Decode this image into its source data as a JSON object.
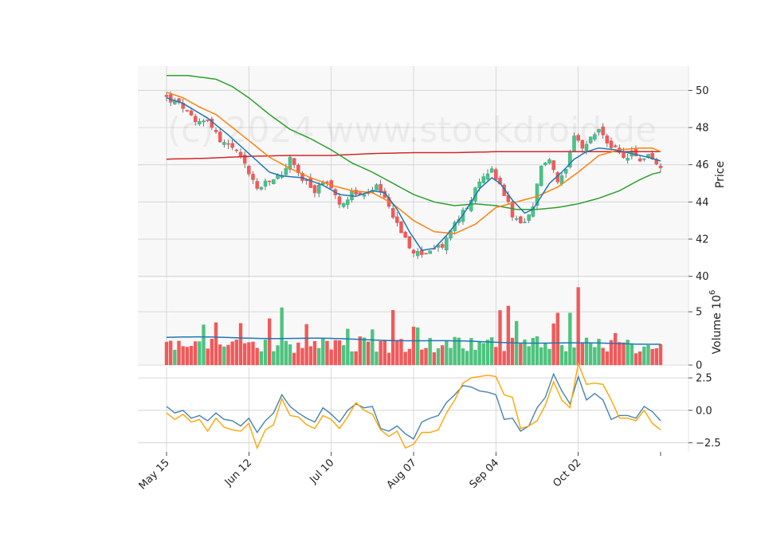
{
  "chart_data": {
    "type": "candlestick",
    "watermark": "(c) 2024 www.stockdroid.de",
    "colors": {
      "up": "#26a69a",
      "up_fill": "#4ec37f",
      "down": "#ef5350",
      "down_fill": "#f05a5a",
      "ma_short": "#1f77b4",
      "ma_mid": "#ff7f0e",
      "ma_long": "#2ca02c",
      "ma_200": "#d62728",
      "vol_ma": "#1f77b4",
      "osc_1": "#4682b4",
      "osc_2": "#ffa500",
      "panel_bg": "#f8f8f8",
      "grid": "#d0d0d0"
    },
    "x_tick_labels": [
      "May 15",
      "Jun 12",
      "Jul 10",
      "Aug 07",
      "Sep 04",
      "Oct 02"
    ],
    "x_tick_index": [
      0,
      20,
      40,
      60,
      80,
      100
    ],
    "n_bars": 121,
    "price_panel": {
      "ylabel": "Price",
      "ylim": [
        39.9,
        51.3
      ],
      "yticks": [
        40,
        42,
        44,
        46,
        48,
        50
      ],
      "anchors": [
        [
          0,
          49.6
        ],
        [
          4,
          49.1
        ],
        [
          7,
          48.2
        ],
        [
          10,
          48.5
        ],
        [
          13,
          47.3
        ],
        [
          16,
          46.9
        ],
        [
          19,
          46.0
        ],
        [
          22,
          44.7
        ],
        [
          25,
          45.1
        ],
        [
          28,
          45.5
        ],
        [
          30,
          46.3
        ],
        [
          33,
          45.2
        ],
        [
          36,
          44.6
        ],
        [
          39,
          45.2
        ],
        [
          42,
          43.8
        ],
        [
          45,
          44.5
        ],
        [
          48,
          44.3
        ],
        [
          51,
          44.8
        ],
        [
          54,
          43.7
        ],
        [
          56,
          42.9
        ],
        [
          59,
          41.5
        ],
        [
          61,
          41.2
        ],
        [
          64,
          41.4
        ],
        [
          67,
          41.6
        ],
        [
          69,
          42.5
        ],
        [
          72,
          43.4
        ],
        [
          74,
          44.2
        ],
        [
          76,
          45.0
        ],
        [
          79,
          45.8
        ],
        [
          82,
          44.5
        ],
        [
          84,
          43.2
        ],
        [
          87,
          42.8
        ],
        [
          89,
          43.7
        ],
        [
          91,
          46.0
        ],
        [
          93,
          46.3
        ],
        [
          95,
          45.0
        ],
        [
          97,
          45.6
        ],
        [
          99,
          47.5
        ],
        [
          101,
          46.8
        ],
        [
          103,
          47.4
        ],
        [
          105,
          47.9
        ],
        [
          107,
          47.2
        ],
        [
          109,
          46.8
        ],
        [
          111,
          46.3
        ],
        [
          113,
          46.6
        ],
        [
          115,
          46.2
        ],
        [
          117,
          46.6
        ],
        [
          120,
          45.7
        ]
      ],
      "ma_short": [
        [
          0,
          49.6
        ],
        [
          4,
          49.3
        ],
        [
          10,
          48.5
        ],
        [
          15,
          47.6
        ],
        [
          20,
          46.6
        ],
        [
          25,
          45.6
        ],
        [
          28,
          45.4
        ],
        [
          33,
          45.3
        ],
        [
          38,
          44.9
        ],
        [
          42,
          44.4
        ],
        [
          46,
          44.3
        ],
        [
          50,
          44.6
        ],
        [
          53,
          44.5
        ],
        [
          56,
          43.6
        ],
        [
          59,
          42.4
        ],
        [
          62,
          41.4
        ],
        [
          65,
          41.5
        ],
        [
          68,
          42.2
        ],
        [
          72,
          43.3
        ],
        [
          76,
          44.7
        ],
        [
          79,
          45.3
        ],
        [
          81,
          45.0
        ],
        [
          84,
          44.1
        ],
        [
          87,
          43.4
        ],
        [
          89,
          43.6
        ],
        [
          91,
          44.3
        ],
        [
          93,
          45.0
        ],
        [
          96,
          45.6
        ],
        [
          99,
          46.3
        ],
        [
          102,
          46.7
        ],
        [
          105,
          46.9
        ],
        [
          109,
          46.8
        ],
        [
          113,
          46.6
        ],
        [
          117,
          46.4
        ],
        [
          120,
          46.2
        ]
      ],
      "ma_mid": [
        [
          0,
          49.9
        ],
        [
          4,
          49.6
        ],
        [
          8,
          49.1
        ],
        [
          12,
          48.7
        ],
        [
          16,
          48.0
        ],
        [
          20,
          47.3
        ],
        [
          25,
          46.4
        ],
        [
          30,
          45.8
        ],
        [
          35,
          45.3
        ],
        [
          40,
          44.9
        ],
        [
          45,
          44.6
        ],
        [
          50,
          44.5
        ],
        [
          55,
          43.9
        ],
        [
          60,
          43.0
        ],
        [
          65,
          42.4
        ],
        [
          70,
          42.3
        ],
        [
          75,
          42.8
        ],
        [
          80,
          43.7
        ],
        [
          85,
          44.0
        ],
        [
          90,
          44.3
        ],
        [
          95,
          44.8
        ],
        [
          100,
          45.6
        ],
        [
          105,
          46.5
        ],
        [
          110,
          46.8
        ],
        [
          115,
          46.9
        ],
        [
          118,
          46.9
        ],
        [
          120,
          46.7
        ]
      ],
      "ma_long": [
        [
          0,
          50.8
        ],
        [
          5,
          50.8
        ],
        [
          12,
          50.6
        ],
        [
          16,
          50.2
        ],
        [
          20,
          49.6
        ],
        [
          25,
          48.7
        ],
        [
          30,
          47.9
        ],
        [
          35,
          47.4
        ],
        [
          40,
          46.8
        ],
        [
          45,
          46.1
        ],
        [
          50,
          45.6
        ],
        [
          55,
          45.0
        ],
        [
          60,
          44.4
        ],
        [
          65,
          44.0
        ],
        [
          70,
          43.8
        ],
        [
          75,
          43.9
        ],
        [
          80,
          43.8
        ],
        [
          85,
          43.6
        ],
        [
          90,
          43.6
        ],
        [
          95,
          43.7
        ],
        [
          100,
          43.9
        ],
        [
          105,
          44.2
        ],
        [
          110,
          44.6
        ],
        [
          115,
          45.2
        ],
        [
          118,
          45.5
        ],
        [
          120,
          45.6
        ]
      ],
      "ma_200": [
        [
          0,
          46.3
        ],
        [
          10,
          46.35
        ],
        [
          20,
          46.45
        ],
        [
          30,
          46.5
        ],
        [
          40,
          46.5
        ],
        [
          50,
          46.6
        ],
        [
          60,
          46.65
        ],
        [
          70,
          46.65
        ],
        [
          80,
          46.7
        ],
        [
          90,
          46.7
        ],
        [
          100,
          46.7
        ],
        [
          110,
          46.7
        ],
        [
          120,
          46.7
        ]
      ]
    },
    "volume_panel": {
      "ylabel": "Volume  10^6",
      "ylim": [
        0,
        8.0
      ],
      "yticks": [
        0,
        5
      ],
      "ma_level": 2.3
    },
    "oscillator_panel": {
      "ylim": [
        -3.2,
        3.3
      ],
      "yticks": [
        -2.5,
        0.0,
        2.5
      ],
      "line1": [
        [
          0,
          0.3
        ],
        [
          2,
          -0.2
        ],
        [
          4,
          0.0
        ],
        [
          6,
          -0.6
        ],
        [
          8,
          -0.4
        ],
        [
          10,
          -0.8
        ],
        [
          12,
          -0.2
        ],
        [
          14,
          -0.7
        ],
        [
          16,
          -0.8
        ],
        [
          18,
          -1.2
        ],
        [
          20,
          -0.6
        ],
        [
          22,
          -1.7
        ],
        [
          24,
          -0.8
        ],
        [
          26,
          -0.2
        ],
        [
          28,
          1.2
        ],
        [
          30,
          0.3
        ],
        [
          32,
          -0.2
        ],
        [
          34,
          -0.6
        ],
        [
          36,
          -0.9
        ],
        [
          38,
          0.2
        ],
        [
          40,
          -0.3
        ],
        [
          42,
          -0.9
        ],
        [
          44,
          0.0
        ],
        [
          46,
          0.5
        ],
        [
          48,
          0.2
        ],
        [
          50,
          0.3
        ],
        [
          52,
          -1.4
        ],
        [
          54,
          -1.6
        ],
        [
          56,
          -1.2
        ],
        [
          58,
          -1.8
        ],
        [
          60,
          -2.2
        ],
        [
          62,
          -0.9
        ],
        [
          64,
          -0.6
        ],
        [
          66,
          -0.4
        ],
        [
          68,
          0.6
        ],
        [
          70,
          1.2
        ],
        [
          72,
          1.9
        ],
        [
          74,
          1.8
        ],
        [
          76,
          1.5
        ],
        [
          78,
          1.4
        ],
        [
          80,
          1.2
        ],
        [
          82,
          -0.7
        ],
        [
          84,
          -0.6
        ],
        [
          86,
          -1.6
        ],
        [
          88,
          -1.2
        ],
        [
          90,
          0.2
        ],
        [
          92,
          1.0
        ],
        [
          94,
          2.8
        ],
        [
          96,
          1.5
        ],
        [
          98,
          0.5
        ],
        [
          100,
          2.6
        ],
        [
          102,
          0.8
        ],
        [
          104,
          1.3
        ],
        [
          106,
          0.8
        ],
        [
          108,
          -0.7
        ],
        [
          110,
          -0.4
        ],
        [
          112,
          -0.4
        ],
        [
          114,
          -0.6
        ],
        [
          116,
          0.3
        ],
        [
          118,
          -0.1
        ],
        [
          120,
          -0.8
        ]
      ],
      "line2": [
        [
          0,
          -0.2
        ],
        [
          2,
          -0.7
        ],
        [
          4,
          -0.3
        ],
        [
          6,
          -0.9
        ],
        [
          8,
          -0.7
        ],
        [
          10,
          -1.6
        ],
        [
          12,
          -0.6
        ],
        [
          14,
          -1.3
        ],
        [
          16,
          -1.5
        ],
        [
          18,
          -1.6
        ],
        [
          20,
          -1.0
        ],
        [
          22,
          -2.9
        ],
        [
          24,
          -1.5
        ],
        [
          26,
          -1.1
        ],
        [
          28,
          0.9
        ],
        [
          30,
          -0.4
        ],
        [
          32,
          -0.5
        ],
        [
          34,
          -1.1
        ],
        [
          36,
          -1.4
        ],
        [
          38,
          -0.4
        ],
        [
          40,
          -0.7
        ],
        [
          42,
          -1.4
        ],
        [
          44,
          -0.5
        ],
        [
          46,
          0.6
        ],
        [
          48,
          0.0
        ],
        [
          50,
          -0.3
        ],
        [
          52,
          -1.5
        ],
        [
          54,
          -2.0
        ],
        [
          56,
          -1.6
        ],
        [
          58,
          -2.9
        ],
        [
          60,
          -2.6
        ],
        [
          62,
          -1.7
        ],
        [
          64,
          -1.7
        ],
        [
          66,
          -1.5
        ],
        [
          68,
          -0.2
        ],
        [
          70,
          0.8
        ],
        [
          72,
          2.1
        ],
        [
          74,
          2.5
        ],
        [
          76,
          2.6
        ],
        [
          78,
          2.7
        ],
        [
          80,
          2.6
        ],
        [
          82,
          1.2
        ],
        [
          84,
          1.0
        ],
        [
          86,
          -1.4
        ],
        [
          88,
          -1.2
        ],
        [
          90,
          -0.8
        ],
        [
          92,
          0.4
        ],
        [
          94,
          2.2
        ],
        [
          96,
          0.8
        ],
        [
          98,
          0.2
        ],
        [
          100,
          3.6
        ],
        [
          102,
          2.0
        ],
        [
          104,
          2.1
        ],
        [
          106,
          2.0
        ],
        [
          108,
          0.8
        ],
        [
          110,
          -0.6
        ],
        [
          112,
          -0.6
        ],
        [
          114,
          -0.8
        ],
        [
          116,
          0.0
        ],
        [
          118,
          -1.0
        ],
        [
          120,
          -1.5
        ]
      ]
    }
  }
}
